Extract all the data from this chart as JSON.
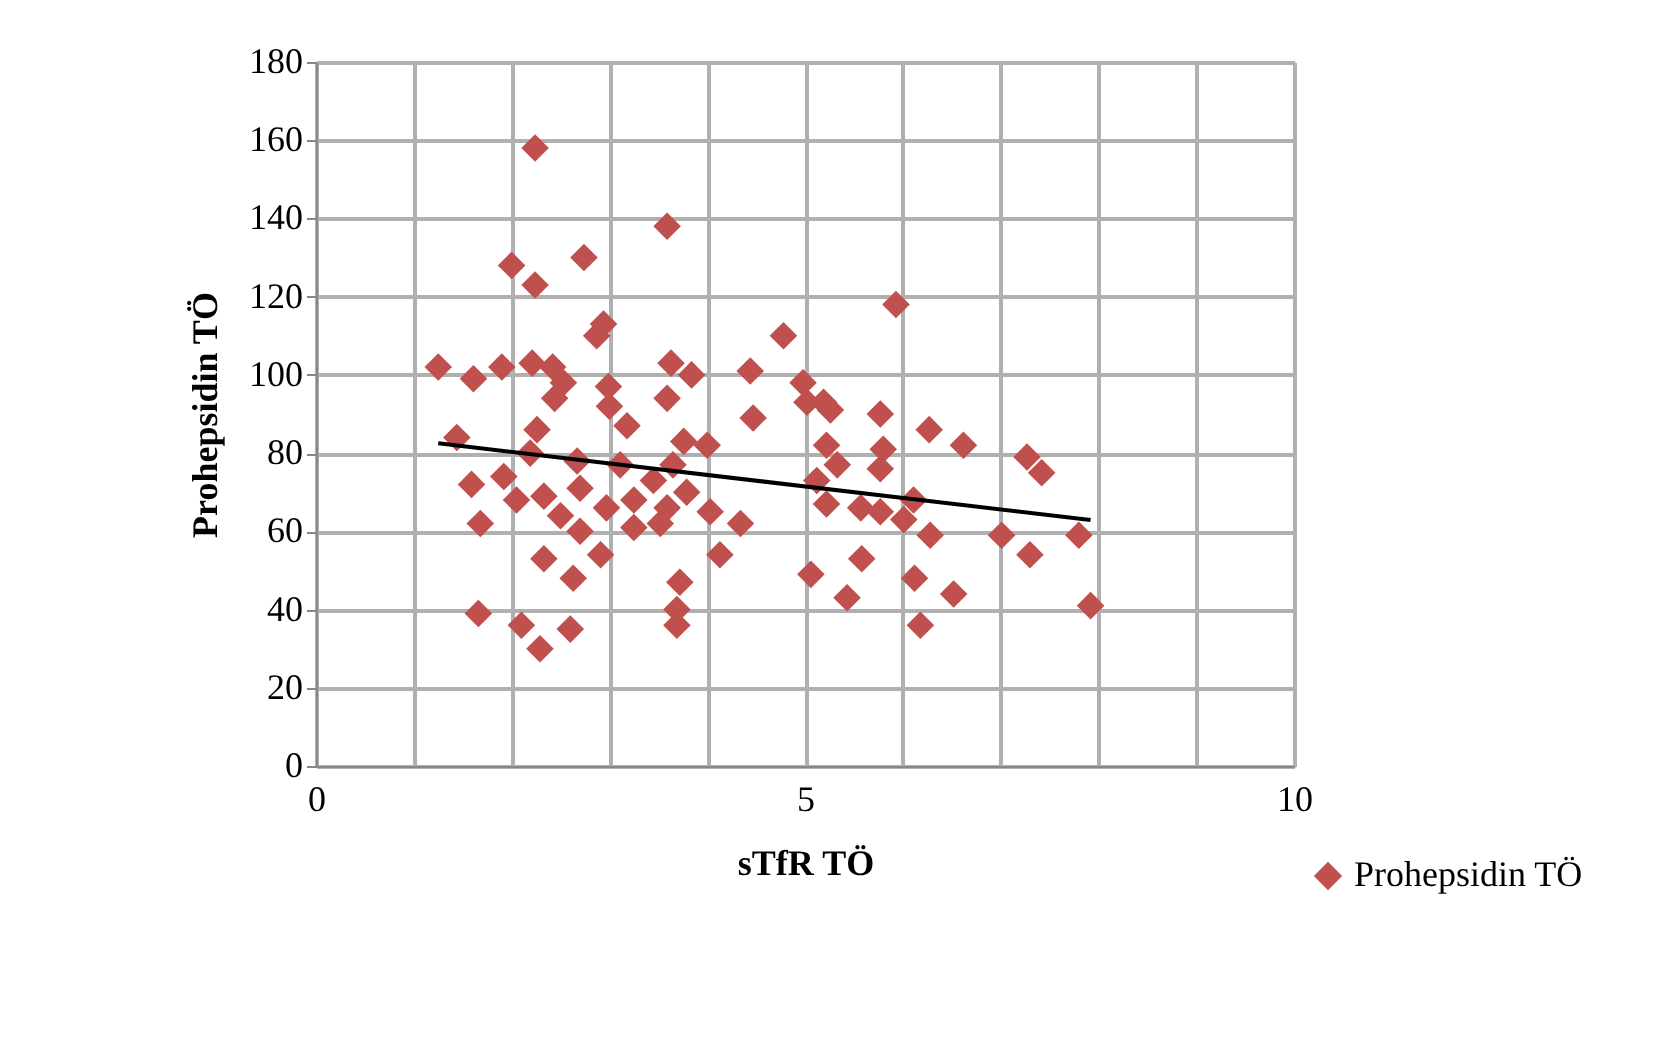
{
  "chart_data": {
    "type": "scatter",
    "xlabel": "sTfR TÖ",
    "ylabel": "Prohepsidin TÖ",
    "marker": "diamond",
    "grid": true,
    "legend": "bottom right",
    "xlim": [
      0,
      10
    ],
    "xticks": [
      0,
      {
        "value": 1,
        "label": null
      },
      {
        "value": 2,
        "label": null
      },
      {
        "value": 3,
        "label": null
      },
      {
        "value": 4,
        "label": null
      },
      5,
      {
        "value": 6,
        "label": null
      },
      {
        "value": 7,
        "label": null
      },
      {
        "value": 8,
        "label": null
      },
      {
        "value": 9,
        "label": null
      },
      10
    ],
    "ylim": [
      0,
      180
    ],
    "yticks": [
      0,
      20,
      40,
      60,
      80,
      100,
      120,
      140,
      160,
      180
    ],
    "series": [
      {
        "name": "Prohepsidin TÖ",
        "color": "#c0504d",
        "x": [
          2.24,
          3.59,
          2.0,
          2.24,
          2.74,
          2.94,
          2.87,
          4.78,
          1.25,
          1.61,
          1.9,
          2.21,
          2.42,
          2.53,
          2.44,
          2.99,
          3.63,
          3.84,
          3.59,
          4.44,
          4.98,
          5.02,
          5.93,
          5.19,
          5.77,
          1.44,
          2.26,
          3.0,
          3.18,
          2.19,
          2.67,
          1.59,
          1.92,
          2.05,
          2.33,
          2.7,
          1.68,
          2.5,
          2.33,
          2.63,
          2.91,
          2.97,
          2.7,
          3.25,
          3.25,
          3.45,
          3.59,
          3.76,
          4.0,
          3.65,
          3.79,
          3.52,
          4.03,
          4.34,
          4.13,
          4.47,
          3.11,
          5.06,
          3.72,
          3.69,
          3.69,
          1.66,
          2.1,
          2.6,
          2.29,
          5.26,
          6.27,
          6.62,
          7.27,
          7.42,
          5.22,
          5.8,
          5.33,
          5.77,
          5.12,
          5.22,
          5.57,
          5.77,
          6.11,
          6.01,
          6.28,
          7.01,
          7.3,
          7.8,
          7.92,
          5.58,
          5.43,
          6.12,
          6.52,
          6.18
        ],
        "values": [
          158,
          138,
          128,
          123,
          130,
          113,
          110,
          110,
          102,
          99,
          102,
          103,
          102,
          98,
          94,
          97,
          103,
          100,
          94,
          101,
          98,
          93,
          118,
          93,
          90,
          84,
          86,
          92,
          87,
          80,
          78,
          72,
          74,
          68,
          69,
          71,
          62,
          64,
          53,
          48,
          54,
          66,
          60,
          68,
          61,
          73,
          66,
          83,
          82,
          77,
          70,
          62,
          65,
          62,
          54,
          89,
          77,
          49,
          47,
          36,
          40,
          39,
          36,
          35,
          30,
          91,
          86,
          82,
          79,
          75,
          82,
          81,
          77,
          76,
          73,
          67,
          66,
          65,
          68,
          63,
          59,
          59,
          54,
          59,
          41,
          53,
          43,
          48,
          44,
          36
        ]
      },
      {
        "color": "#000000",
        "type": "line",
        "marker": "none",
        "line_style": "solid",
        "x": [
          1.25,
          7.92
        ],
        "values": [
          82.5,
          62.9
        ]
      }
    ]
  }
}
